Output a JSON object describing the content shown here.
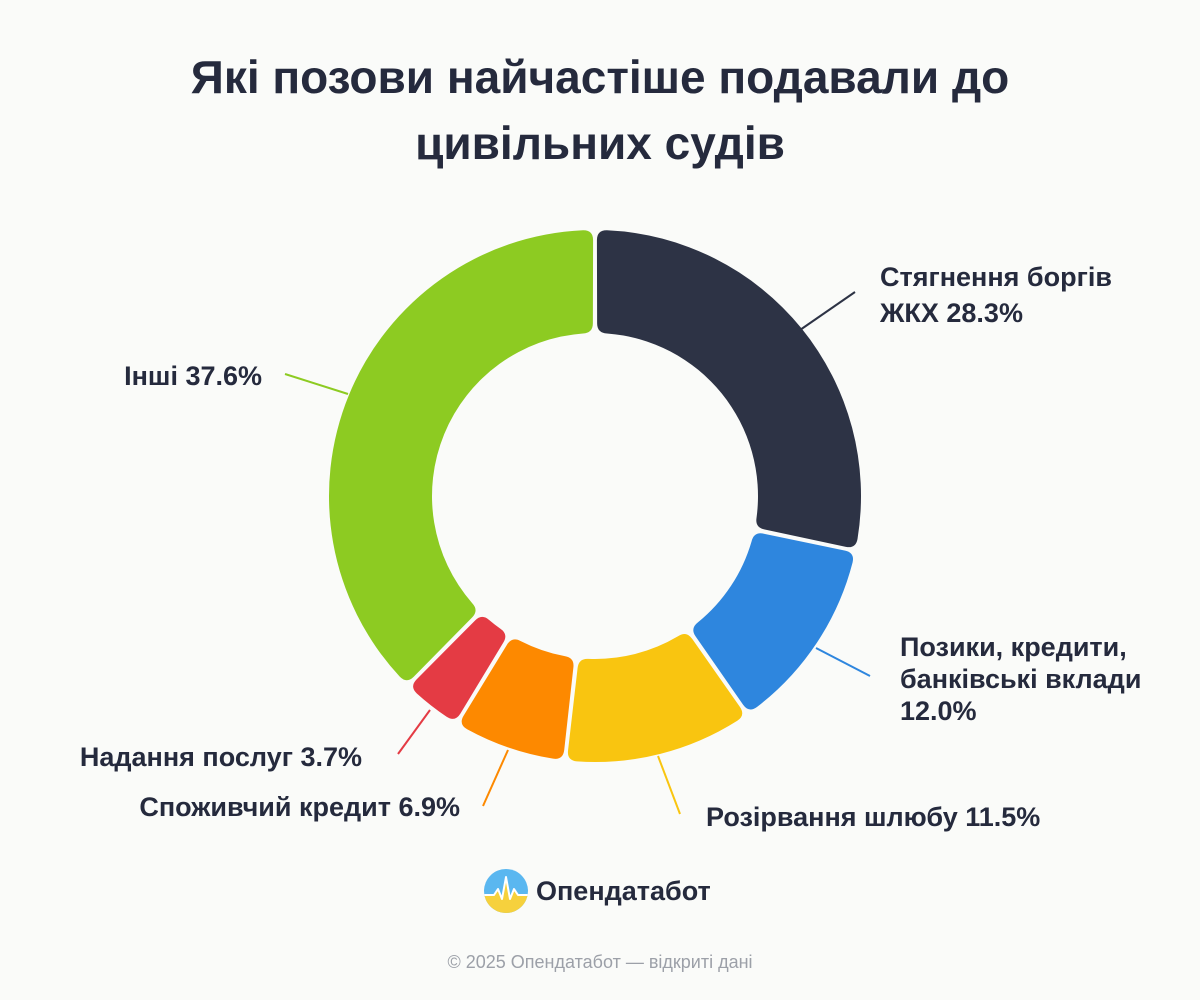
{
  "title_lines": [
    "Які позови найчастіше подавали до",
    "цивільних судів"
  ],
  "chart_data": {
    "type": "pie",
    "variant": "donut",
    "title": "Які позови найчастіше подавали до цивільних судів",
    "slices": [
      {
        "label_lines": [
          "Стягнення боргів",
          "ЖКХ 28.3%"
        ],
        "name": "Стягнення боргів ЖКХ",
        "value": 28.3,
        "color": "#2d3345"
      },
      {
        "label_lines": [
          "Позики, кредити,",
          "банківські вклади",
          "12.0%"
        ],
        "name": "Позики, кредити, банківські вклади",
        "value": 12.0,
        "color": "#2e86de"
      },
      {
        "label_lines": [
          "Розірвання шлюбу 11.5%"
        ],
        "name": "Розірвання шлюбу",
        "value": 11.5,
        "color": "#f9c510"
      },
      {
        "label_lines": [
          "Споживчий кредит 6.9%"
        ],
        "name": "Споживчий кредит",
        "value": 6.9,
        "color": "#fd8900"
      },
      {
        "label_lines": [
          "Надання послуг 3.7%"
        ],
        "name": "Надання послуг",
        "value": 3.7,
        "color": "#e43b44"
      },
      {
        "label_lines": [
          "Інші 37.6%"
        ],
        "name": "Інші",
        "value": 37.6,
        "color": "#8dcb22"
      }
    ],
    "start": "top",
    "direction": "clockwise",
    "legend": "none"
  },
  "brand": {
    "name": "Опендатабот",
    "logo_icon": "opendatabot-logo-icon"
  },
  "footer": "© 2025 Опендатабот — відкриті дані"
}
